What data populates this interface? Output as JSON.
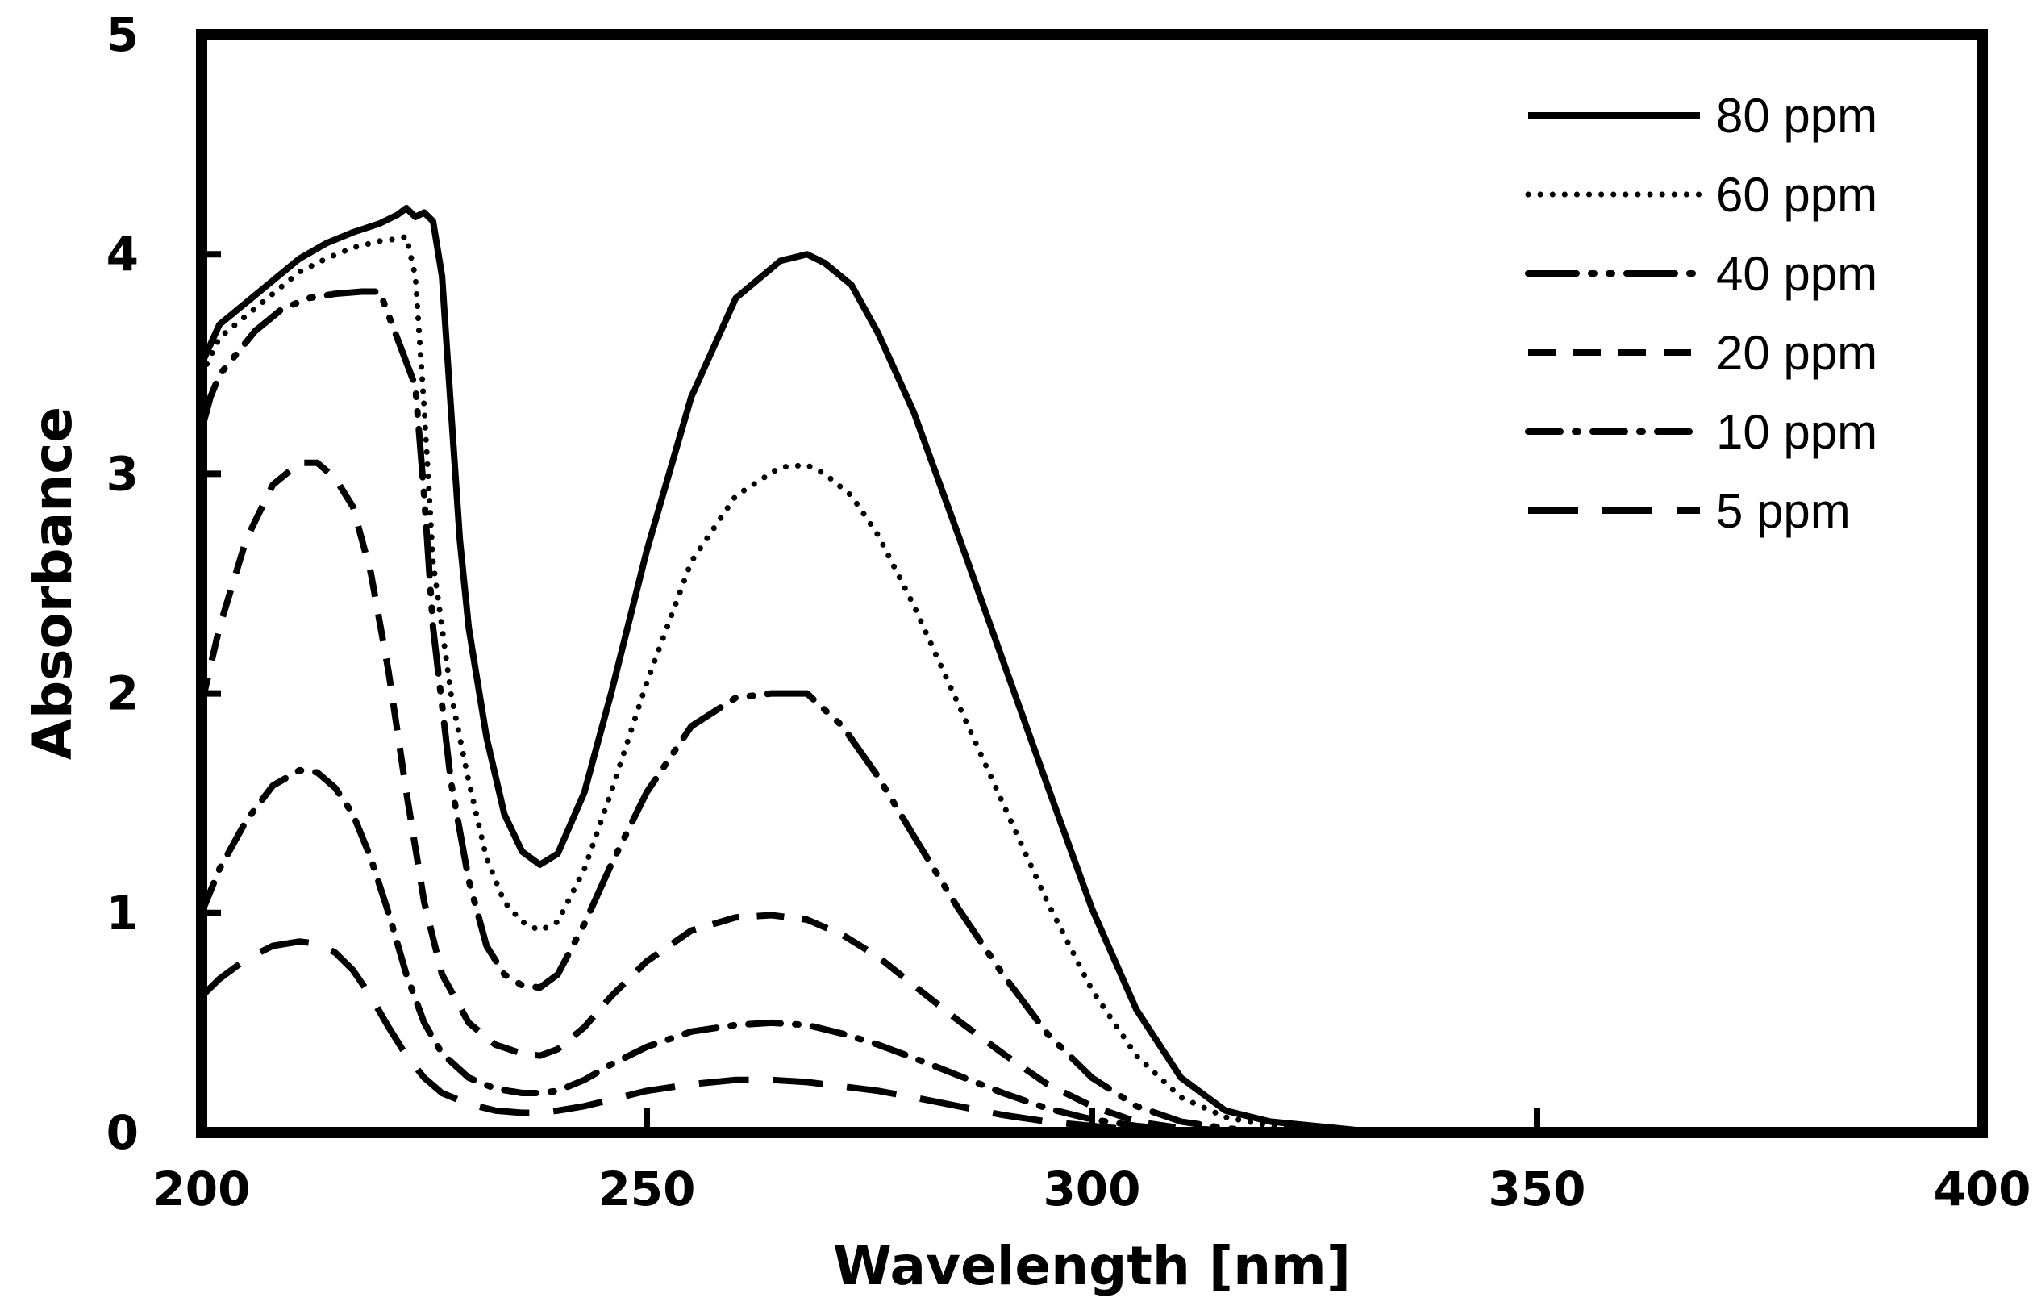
{
  "chart_data": {
    "type": "line",
    "title": "",
    "xlabel": "Wavelength [nm]",
    "ylabel": "Absorbance",
    "xlim": [
      200,
      400
    ],
    "ylim": [
      0,
      5
    ],
    "xticks": [
      200,
      250,
      300,
      350,
      400
    ],
    "yticks": [
      0,
      1,
      2,
      3,
      4,
      5
    ],
    "grid": false,
    "legend_position": "top-right",
    "colors": {
      "line": "#000000",
      "background": "#ffffff",
      "frame": "#000000"
    },
    "series": [
      {
        "name": "80 ppm",
        "style": "solid",
        "points": [
          [
            200,
            3.5
          ],
          [
            202,
            3.68
          ],
          [
            205,
            3.78
          ],
          [
            208,
            3.88
          ],
          [
            211,
            3.98
          ],
          [
            214,
            4.05
          ],
          [
            217,
            4.1
          ],
          [
            220,
            4.14
          ],
          [
            222,
            4.18
          ],
          [
            223,
            4.21
          ],
          [
            224,
            4.17
          ],
          [
            225,
            4.19
          ],
          [
            226,
            4.15
          ],
          [
            227,
            3.9
          ],
          [
            228,
            3.3
          ],
          [
            229,
            2.7
          ],
          [
            230,
            2.3
          ],
          [
            232,
            1.8
          ],
          [
            234,
            1.45
          ],
          [
            236,
            1.28
          ],
          [
            238,
            1.22
          ],
          [
            240,
            1.27
          ],
          [
            243,
            1.55
          ],
          [
            246,
            2.0
          ],
          [
            250,
            2.65
          ],
          [
            255,
            3.35
          ],
          [
            260,
            3.8
          ],
          [
            265,
            3.97
          ],
          [
            268,
            4.0
          ],
          [
            270,
            3.96
          ],
          [
            273,
            3.86
          ],
          [
            276,
            3.64
          ],
          [
            280,
            3.28
          ],
          [
            285,
            2.72
          ],
          [
            290,
            2.15
          ],
          [
            295,
            1.58
          ],
          [
            300,
            1.02
          ],
          [
            305,
            0.56
          ],
          [
            310,
            0.25
          ],
          [
            315,
            0.1
          ],
          [
            320,
            0.05
          ],
          [
            330,
            0.01
          ],
          [
            340,
            0.0
          ],
          [
            360,
            0.0
          ]
        ]
      },
      {
        "name": "60 ppm",
        "style": "dotted",
        "points": [
          [
            200,
            3.45
          ],
          [
            202,
            3.62
          ],
          [
            205,
            3.72
          ],
          [
            208,
            3.82
          ],
          [
            211,
            3.92
          ],
          [
            214,
            3.98
          ],
          [
            217,
            4.03
          ],
          [
            220,
            4.06
          ],
          [
            222,
            4.07
          ],
          [
            223,
            4.08
          ],
          [
            224,
            3.9
          ],
          [
            225,
            3.3
          ],
          [
            226,
            2.6
          ],
          [
            228,
            2.0
          ],
          [
            230,
            1.6
          ],
          [
            232,
            1.25
          ],
          [
            234,
            1.05
          ],
          [
            236,
            0.96
          ],
          [
            238,
            0.92
          ],
          [
            240,
            0.96
          ],
          [
            243,
            1.2
          ],
          [
            246,
            1.55
          ],
          [
            250,
            2.05
          ],
          [
            255,
            2.6
          ],
          [
            260,
            2.9
          ],
          [
            265,
            3.03
          ],
          [
            268,
            3.04
          ],
          [
            270,
            3.0
          ],
          [
            273,
            2.9
          ],
          [
            276,
            2.72
          ],
          [
            280,
            2.4
          ],
          [
            285,
            1.95
          ],
          [
            290,
            1.5
          ],
          [
            295,
            1.05
          ],
          [
            300,
            0.65
          ],
          [
            305,
            0.35
          ],
          [
            310,
            0.16
          ],
          [
            315,
            0.07
          ],
          [
            320,
            0.03
          ],
          [
            325,
            0.01
          ],
          [
            330,
            0.0
          ],
          [
            360,
            0.0
          ]
        ]
      },
      {
        "name": "40 ppm",
        "style": "dash-dot-dot",
        "points": [
          [
            200,
            3.2
          ],
          [
            201,
            3.35
          ],
          [
            202,
            3.45
          ],
          [
            203,
            3.5
          ],
          [
            206,
            3.65
          ],
          [
            209,
            3.75
          ],
          [
            212,
            3.8
          ],
          [
            215,
            3.82
          ],
          [
            218,
            3.83
          ],
          [
            220,
            3.83
          ],
          [
            224,
            3.4
          ],
          [
            225,
            2.9
          ],
          [
            226,
            2.3
          ],
          [
            228,
            1.6
          ],
          [
            230,
            1.15
          ],
          [
            232,
            0.85
          ],
          [
            234,
            0.72
          ],
          [
            236,
            0.67
          ],
          [
            238,
            0.66
          ],
          [
            240,
            0.72
          ],
          [
            243,
            0.95
          ],
          [
            246,
            1.22
          ],
          [
            250,
            1.55
          ],
          [
            255,
            1.85
          ],
          [
            260,
            1.98
          ],
          [
            264,
            2.0
          ],
          [
            268,
            2.0
          ],
          [
            272,
            1.85
          ],
          [
            276,
            1.62
          ],
          [
            280,
            1.35
          ],
          [
            285,
            1.02
          ],
          [
            290,
            0.72
          ],
          [
            295,
            0.45
          ],
          [
            300,
            0.25
          ],
          [
            305,
            0.12
          ],
          [
            310,
            0.05
          ],
          [
            315,
            0.02
          ],
          [
            320,
            0.0
          ],
          [
            360,
            0.0
          ]
        ]
      },
      {
        "name": "20 ppm",
        "style": "dashed",
        "points": [
          [
            200,
            1.95
          ],
          [
            202,
            2.3
          ],
          [
            205,
            2.7
          ],
          [
            208,
            2.95
          ],
          [
            211,
            3.05
          ],
          [
            213,
            3.05
          ],
          [
            215,
            2.98
          ],
          [
            217,
            2.85
          ],
          [
            219,
            2.55
          ],
          [
            221,
            2.1
          ],
          [
            223,
            1.55
          ],
          [
            225,
            1.05
          ],
          [
            227,
            0.72
          ],
          [
            230,
            0.5
          ],
          [
            233,
            0.4
          ],
          [
            236,
            0.36
          ],
          [
            238,
            0.35
          ],
          [
            240,
            0.38
          ],
          [
            243,
            0.48
          ],
          [
            246,
            0.62
          ],
          [
            250,
            0.78
          ],
          [
            255,
            0.92
          ],
          [
            260,
            0.98
          ],
          [
            264,
            0.99
          ],
          [
            268,
            0.97
          ],
          [
            272,
            0.9
          ],
          [
            276,
            0.8
          ],
          [
            280,
            0.67
          ],
          [
            285,
            0.51
          ],
          [
            290,
            0.36
          ],
          [
            295,
            0.22
          ],
          [
            300,
            0.12
          ],
          [
            305,
            0.05
          ],
          [
            310,
            0.02
          ],
          [
            315,
            0.01
          ],
          [
            320,
            0.0
          ],
          [
            360,
            0.0
          ]
        ]
      },
      {
        "name": "10 ppm",
        "style": "dash-dot",
        "points": [
          [
            200,
            1.0
          ],
          [
            202,
            1.2
          ],
          [
            205,
            1.42
          ],
          [
            208,
            1.58
          ],
          [
            211,
            1.65
          ],
          [
            213,
            1.64
          ],
          [
            215,
            1.57
          ],
          [
            217,
            1.45
          ],
          [
            219,
            1.25
          ],
          [
            221,
            1.0
          ],
          [
            223,
            0.72
          ],
          [
            225,
            0.5
          ],
          [
            227,
            0.36
          ],
          [
            230,
            0.25
          ],
          [
            233,
            0.2
          ],
          [
            236,
            0.18
          ],
          [
            238,
            0.18
          ],
          [
            240,
            0.19
          ],
          [
            243,
            0.24
          ],
          [
            246,
            0.31
          ],
          [
            250,
            0.39
          ],
          [
            255,
            0.46
          ],
          [
            260,
            0.49
          ],
          [
            264,
            0.5
          ],
          [
            268,
            0.49
          ],
          [
            272,
            0.45
          ],
          [
            276,
            0.4
          ],
          [
            280,
            0.34
          ],
          [
            285,
            0.26
          ],
          [
            290,
            0.18
          ],
          [
            295,
            0.11
          ],
          [
            300,
            0.06
          ],
          [
            305,
            0.03
          ],
          [
            310,
            0.01
          ],
          [
            315,
            0.0
          ],
          [
            360,
            0.0
          ]
        ]
      },
      {
        "name": "5 ppm",
        "style": "long-dash",
        "points": [
          [
            200,
            0.62
          ],
          [
            202,
            0.7
          ],
          [
            205,
            0.79
          ],
          [
            208,
            0.85
          ],
          [
            211,
            0.87
          ],
          [
            213,
            0.86
          ],
          [
            215,
            0.82
          ],
          [
            217,
            0.74
          ],
          [
            219,
            0.62
          ],
          [
            221,
            0.48
          ],
          [
            223,
            0.35
          ],
          [
            225,
            0.25
          ],
          [
            227,
            0.18
          ],
          [
            230,
            0.13
          ],
          [
            233,
            0.1
          ],
          [
            236,
            0.09
          ],
          [
            238,
            0.09
          ],
          [
            240,
            0.1
          ],
          [
            243,
            0.12
          ],
          [
            246,
            0.15
          ],
          [
            250,
            0.19
          ],
          [
            255,
            0.22
          ],
          [
            260,
            0.24
          ],
          [
            264,
            0.24
          ],
          [
            268,
            0.23
          ],
          [
            272,
            0.21
          ],
          [
            276,
            0.19
          ],
          [
            280,
            0.16
          ],
          [
            285,
            0.12
          ],
          [
            290,
            0.08
          ],
          [
            295,
            0.05
          ],
          [
            300,
            0.03
          ],
          [
            305,
            0.01
          ],
          [
            310,
            0.0
          ],
          [
            360,
            0.0
          ]
        ]
      }
    ]
  }
}
